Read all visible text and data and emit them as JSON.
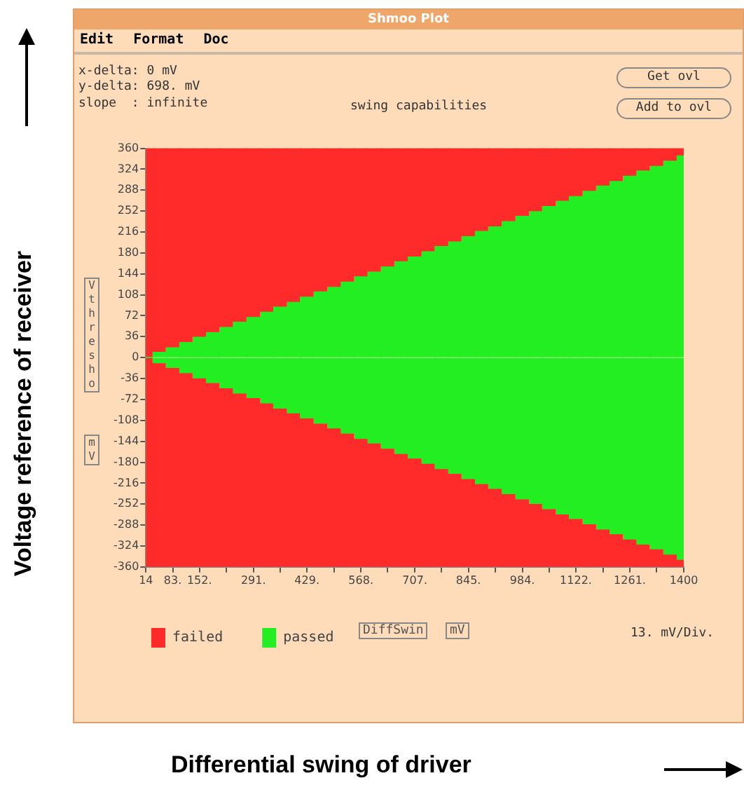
{
  "chart_data": {
    "type": "bar",
    "title": "swing capabilities",
    "ylabel": "Voltage reference of receiver",
    "annotations": [
      "Shmoo Plot",
      "Edit",
      "Format",
      "Doc",
      "x-delta: 0 mV",
      "y-delta: 698. mV",
      "slope  : infinite",
      "Get ovl",
      "Add to ovl",
      "Vthresho",
      "mV",
      "DiffSwin",
      "mV",
      "13. mV/Div.",
      "Differential swing of driver"
    ],
    "x": [
      14,
      49,
      83,
      118,
      152,
      187,
      221,
      256,
      291,
      326,
      360,
      395,
      429,
      464,
      499,
      534,
      568,
      603,
      637,
      672,
      707,
      742,
      776,
      811,
      845,
      880,
      914,
      949,
      984,
      1019,
      1053,
      1088,
      1122,
      1157,
      1192,
      1227,
      1261,
      1296,
      1330,
      1365,
      1400
    ],
    "stacked": true,
    "series": [
      {
        "name": "passed",
        "color": "#22ee22",
        "values": [
          0,
          9,
          17,
          26,
          35,
          43,
          52,
          61,
          69,
          78,
          87,
          95,
          104,
          113,
          121,
          130,
          139,
          147,
          156,
          165,
          173,
          182,
          191,
          199,
          208,
          217,
          225,
          234,
          243,
          251,
          260,
          269,
          277,
          286,
          295,
          303,
          312,
          321,
          329,
          338,
          347
        ]
      },
      {
        "color": "#22ee22",
        "values": [
          0,
          -9,
          -17,
          -26,
          -35,
          -43,
          -52,
          -61,
          -69,
          -78,
          -87,
          -95,
          -104,
          -113,
          -121,
          -130,
          -139,
          -147,
          -156,
          -165,
          -173,
          -182,
          -191,
          -199,
          -208,
          -217,
          -225,
          -234,
          -243,
          -251,
          -260,
          -269,
          -277,
          -286,
          -295,
          -303,
          -312,
          -321,
          -329,
          -338,
          -347
        ]
      },
      {
        "name": "failed",
        "color": "#ff2a2a",
        "values": [
          360,
          351,
          343,
          334,
          325,
          317,
          308,
          299,
          291,
          282,
          273,
          265,
          256,
          247,
          239,
          230,
          221,
          213,
          204,
          195,
          187,
          178,
          169,
          161,
          152,
          143,
          135,
          126,
          117,
          109,
          100,
          91,
          83,
          74,
          65,
          57,
          48,
          39,
          31,
          22,
          13
        ]
      },
      {
        "color": "#ff2a2a",
        "values": [
          -360,
          -351,
          -343,
          -334,
          -325,
          -317,
          -308,
          -299,
          -291,
          -282,
          -273,
          -265,
          -256,
          -247,
          -239,
          -230,
          -221,
          -213,
          -204,
          -195,
          -187,
          -178,
          -169,
          -161,
          -152,
          -143,
          -135,
          -126,
          -117,
          -109,
          -100,
          -91,
          -83,
          -74,
          -65,
          -57,
          -48,
          -39,
          -31,
          -22,
          -13
        ]
      }
    ],
    "xlim": [
      14,
      1400
    ],
    "xticks": [
      14,
      {
        "value": 83,
        "label": "83."
      },
      {
        "value": 152,
        "label": "152."
      },
      {
        "value": 221,
        "label": null
      },
      {
        "value": 291,
        "label": "291."
      },
      {
        "value": 360,
        "label": null
      },
      {
        "value": 429,
        "label": "429."
      },
      {
        "value": 499,
        "label": null
      },
      {
        "value": 568,
        "label": "568."
      },
      {
        "value": 637,
        "label": null
      },
      {
        "value": 707,
        "label": "707."
      },
      {
        "value": 776,
        "label": null
      },
      {
        "value": 845,
        "label": "845."
      },
      {
        "value": 914,
        "label": null
      },
      {
        "value": 984,
        "label": "984."
      },
      {
        "value": 1053,
        "label": null
      },
      {
        "value": 1122,
        "label": "1122."
      },
      {
        "value": 1192,
        "label": null
      },
      {
        "value": 1261,
        "label": "1261."
      },
      {
        "value": 1330,
        "label": null
      },
      1400
    ],
    "ylim": [
      -360,
      360
    ],
    "yticks": [
      -360,
      -324,
      -288,
      -252,
      -216,
      -180,
      -144,
      -108,
      -72,
      -36,
      0,
      36,
      72,
      108,
      144,
      180,
      216,
      252,
      288,
      324,
      360
    ],
    "legend": "bottom left"
  }
}
